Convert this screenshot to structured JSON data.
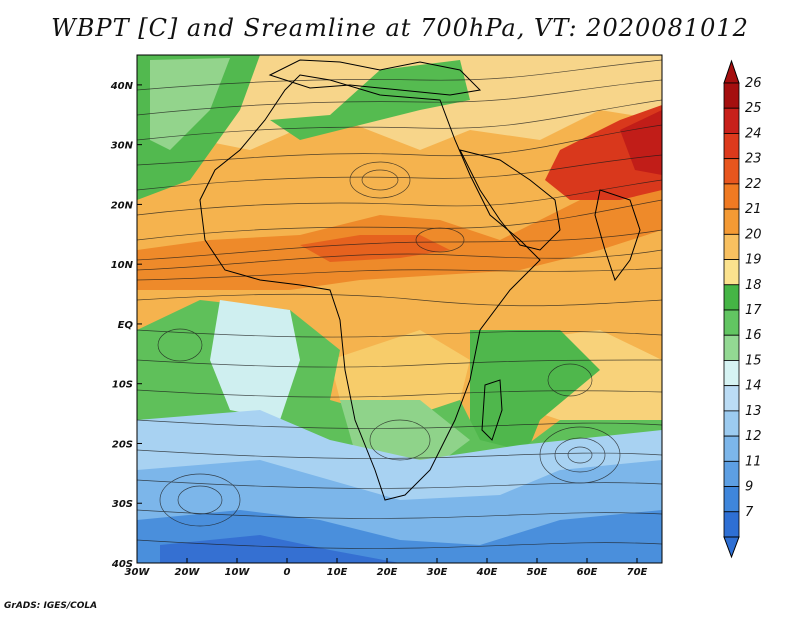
{
  "title": "WBPT [C] and Sreamline at 700hPa, VT: 2020081012",
  "credit": "GrADS: IGES/COLA",
  "map": {
    "lon_ticks": [
      "30W",
      "20W",
      "10W",
      "0",
      "10E",
      "20E",
      "30E",
      "40E",
      "50E",
      "60E",
      "70E"
    ],
    "lat_ticks": [
      "40N",
      "30N",
      "20N",
      "10N",
      "EQ",
      "10S",
      "20S",
      "30S",
      "40S"
    ],
    "lon_range": [
      -30,
      75
    ],
    "lat_range": [
      -40,
      45
    ]
  },
  "colorbar": {
    "labels": [
      "26",
      "25",
      "24",
      "23",
      "22",
      "21",
      "20",
      "19",
      "18",
      "17",
      "16",
      "15",
      "14",
      "13",
      "12",
      "11",
      "9",
      "7"
    ],
    "colors": [
      "#a50f0f",
      "#c8201a",
      "#dd3a1c",
      "#e8561e",
      "#f07a22",
      "#f49a34",
      "#f8c060",
      "#fbe28e",
      "#45b545",
      "#62c562",
      "#93d993",
      "#d6f3f3",
      "#bbdcf5",
      "#9ccbf0",
      "#7cb6ea",
      "#5d9fe3",
      "#3f86db",
      "#2e6fd4"
    ]
  }
}
